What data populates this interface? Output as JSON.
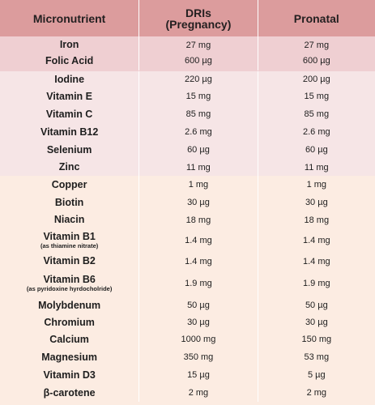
{
  "header": {
    "col1": "Micronutrient",
    "col2_line1": "DRIs",
    "col2_line2": "(Pregnancy)",
    "col3": "Pronatal"
  },
  "rows": [
    {
      "name": "Iron",
      "dri": "27 mg",
      "pronatal": "27 mg"
    },
    {
      "name": "Folic Acid",
      "dri": "600 µg",
      "pronatal": "600 µg"
    },
    {
      "name": "Iodine",
      "dri": "220 µg",
      "pronatal": "200 µg"
    },
    {
      "name": "Vitamin E",
      "dri": "15 mg",
      "pronatal": "15 mg"
    },
    {
      "name": "Vitamin C",
      "dri": "85 mg",
      "pronatal": "85 mg"
    },
    {
      "name": "Vitamin B12",
      "dri": "2.6 mg",
      "pronatal": "2.6 mg"
    },
    {
      "name": "Selenium",
      "dri": "60 µg",
      "pronatal": "60 µg"
    },
    {
      "name": "Zinc",
      "dri": "11 mg",
      "pronatal": "11 mg"
    },
    {
      "name": "Copper",
      "dri": "1 mg",
      "pronatal": "1 mg"
    },
    {
      "name": "Biotin",
      "dri": "30 µg",
      "pronatal": "30 µg"
    },
    {
      "name": "Niacin",
      "dri": "18 mg",
      "pronatal": "18 mg"
    },
    {
      "name": "Vitamin B1",
      "note": "(as thiamine nitrate)",
      "dri": "1.4 mg",
      "pronatal": "1.4 mg"
    },
    {
      "name": "Vitamin B2",
      "dri": "1.4 mg",
      "pronatal": "1.4 mg"
    },
    {
      "name": "Vitamin B6",
      "note": "(as pyridoxine hyrdocholride)",
      "dri": "1.9 mg",
      "pronatal": "1.9 mg"
    },
    {
      "name": "Molybdenum",
      "dri": "50 µg",
      "pronatal": "50 µg"
    },
    {
      "name": "Chromium",
      "dri": "30 µg",
      "pronatal": "30 µg"
    },
    {
      "name": "Calcium",
      "dri": "1000 mg",
      "pronatal": "150 mg"
    },
    {
      "name": "Magnesium",
      "dri": "350 mg",
      "pronatal": "53 mg"
    },
    {
      "name": "Vitamin D3",
      "dri": "15 µg",
      "pronatal": "5 µg"
    },
    {
      "name": "β-carotene",
      "dri": "2 mg",
      "pronatal": "2 mg"
    }
  ],
  "colors": {
    "header_bg": "#dc9c9d",
    "group1_bg": "#efcfd2",
    "group2_bg": "#f6e5e6",
    "group3_bg": "#fcece2"
  }
}
